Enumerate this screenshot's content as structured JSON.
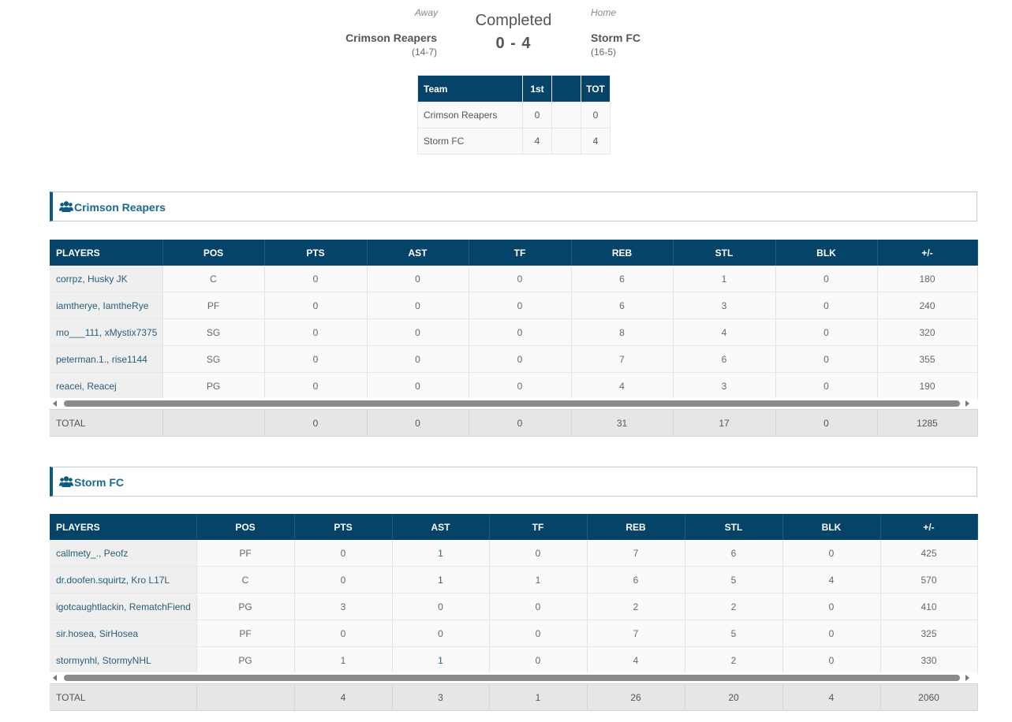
{
  "game": {
    "away_label": "Away",
    "home_label": "Home",
    "status": "Completed",
    "score": "0 - 4",
    "away": {
      "name": "Crimson Reapers",
      "record": "(14-7)"
    },
    "home": {
      "name": "Storm FC",
      "record": "(16-5)"
    }
  },
  "linescore": {
    "headers": [
      "Team",
      "1st",
      "",
      "TOT"
    ],
    "rows": [
      {
        "team": "Crimson Reapers",
        "q1": "0",
        "tot": "0"
      },
      {
        "team": "Storm FC",
        "q1": "4",
        "tot": "4"
      }
    ]
  },
  "columns": [
    "PLAYERS",
    "POS",
    "PTS",
    "AST",
    "TF",
    "REB",
    "STL",
    "BLK",
    "+/-"
  ],
  "teams": [
    {
      "title": "Crimson Reapers",
      "icon": "users-icon",
      "players": [
        {
          "name": "corrpz, Husky JK",
          "pos": "C",
          "pts": "0",
          "ast": "0",
          "tf": "0",
          "reb": "6",
          "stl": "1",
          "blk": "0",
          "pm": "180"
        },
        {
          "name": "iamtherye, IamtheRye",
          "pos": "PF",
          "pts": "0",
          "ast": "0",
          "tf": "0",
          "reb": "6",
          "stl": "3",
          "blk": "0",
          "pm": "240"
        },
        {
          "name": "mo___111, xMystix7375",
          "pos": "SG",
          "pts": "0",
          "ast": "0",
          "tf": "0",
          "reb": "8",
          "stl": "4",
          "blk": "0",
          "pm": "320"
        },
        {
          "name": "peterman.1., rise1144",
          "pos": "SG",
          "pts": "0",
          "ast": "0",
          "tf": "0",
          "reb": "7",
          "stl": "6",
          "blk": "0",
          "pm": "355"
        },
        {
          "name": "reacei, Reacej",
          "pos": "PG",
          "pts": "0",
          "ast": "0",
          "tf": "0",
          "reb": "4",
          "stl": "3",
          "blk": "0",
          "pm": "190"
        }
      ],
      "total": {
        "label": "TOTAL",
        "pts": "0",
        "ast": "0",
        "tf": "0",
        "reb": "31",
        "stl": "17",
        "blk": "0",
        "pm": "1285"
      }
    },
    {
      "title": "Storm FC",
      "icon": "users-icon",
      "players": [
        {
          "name": "callmety_., Peofz",
          "pos": "PF",
          "pts": "0",
          "ast": "1",
          "tf": "0",
          "reb": "7",
          "stl": "6",
          "blk": "0",
          "pm": "425"
        },
        {
          "name": "dr.doofen.squirtz, Kro L17L",
          "pos": "C",
          "pts": "0",
          "ast": "1",
          "tf": "1",
          "reb": "6",
          "stl": "5",
          "blk": "4",
          "pm": "570"
        },
        {
          "name": "igotcaughtlackin, RematchFiend",
          "pos": "PG",
          "pts": "3",
          "ast": "0",
          "tf": "0",
          "reb": "2",
          "stl": "2",
          "blk": "0",
          "pm": "410"
        },
        {
          "name": "sir.hosea, SirHosea",
          "pos": "PF",
          "pts": "0",
          "ast": "0",
          "tf": "0",
          "reb": "7",
          "stl": "5",
          "blk": "0",
          "pm": "325"
        },
        {
          "name": "stormynhl, StormyNHL",
          "pos": "PG",
          "pts": "1",
          "ast": "1",
          "tf": "0",
          "reb": "4",
          "stl": "2",
          "blk": "0",
          "pm": "330"
        }
      ],
      "total": {
        "label": "TOTAL",
        "pts": "4",
        "ast": "3",
        "tf": "1",
        "reb": "26",
        "stl": "20",
        "blk": "4",
        "pm": "2060"
      }
    }
  ],
  "colors": {
    "header_bg": "#054468",
    "link": "#2b5d7a",
    "accent": "#0c5b80"
  }
}
